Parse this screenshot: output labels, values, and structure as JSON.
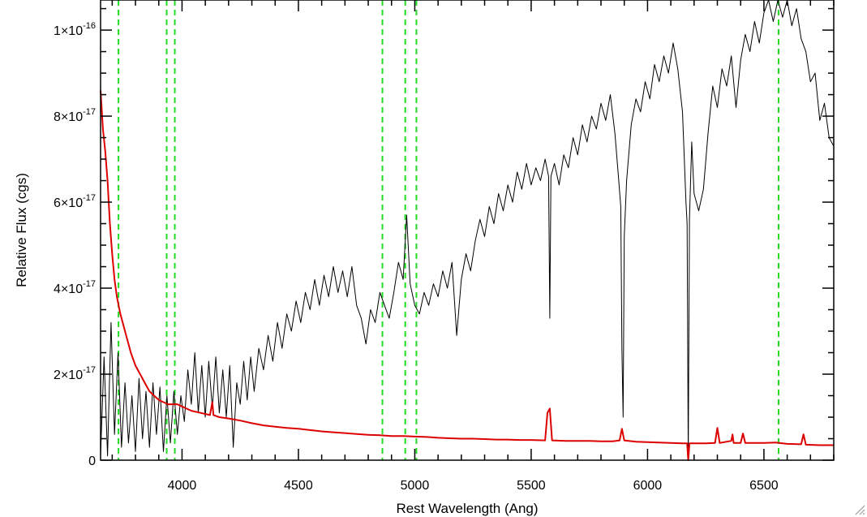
{
  "chart_data": {
    "type": "line",
    "title": "",
    "xlabel": "Rest Wavelength (Ang)",
    "ylabel": "Relative Flux (cgs)",
    "xlim": [
      3650,
      6800
    ],
    "ylim": [
      0,
      1.07e-16
    ],
    "x_ticks": [
      {
        "value": 4000,
        "label": "4000"
      },
      {
        "value": 4500,
        "label": "4500"
      },
      {
        "value": 5000,
        "label": "5000"
      },
      {
        "value": 5500,
        "label": "5500"
      },
      {
        "value": 6000,
        "label": "6000"
      },
      {
        "value": 6500,
        "label": "6500"
      }
    ],
    "y_ticks": [
      {
        "value": 0,
        "label": "0",
        "mant": "",
        "exp": ""
      },
      {
        "value": 2e-17,
        "label": "2×10⁻¹⁷",
        "mant": "2×10",
        "exp": "-17"
      },
      {
        "value": 4e-17,
        "label": "4×10⁻¹⁷",
        "mant": "4×10",
        "exp": "-17"
      },
      {
        "value": 6e-17,
        "label": "6×10⁻¹⁷",
        "mant": "6×10",
        "exp": "-17"
      },
      {
        "value": 8e-17,
        "label": "8×10⁻¹⁷",
        "mant": "8×10",
        "exp": "-17"
      },
      {
        "value": 1e-16,
        "label": "1×10⁻¹⁶",
        "mant": "1×10",
        "exp": "-16"
      }
    ],
    "reference_lines": [
      3727,
      3934,
      3969,
      4861,
      4959,
      5007,
      6563
    ],
    "series": [
      {
        "color": "#000000",
        "points": [
          [
            3650,
            1e-18
          ],
          [
            3665,
            2.4e-17
          ],
          [
            3680,
            1e-18
          ],
          [
            3695,
            3.2e-17
          ],
          [
            3710,
            6e-18
          ],
          [
            3725,
            2.5e-17
          ],
          [
            3740,
            3e-18
          ],
          [
            3755,
            1.8e-17
          ],
          [
            3770,
            4e-18
          ],
          [
            3785,
            1.5e-17
          ],
          [
            3800,
            2e-18
          ],
          [
            3815,
            1.9e-17
          ],
          [
            3830,
            5e-18
          ],
          [
            3845,
            1.6e-17
          ],
          [
            3860,
            3e-18
          ],
          [
            3875,
            1.8e-17
          ],
          [
            3890,
            6e-18
          ],
          [
            3905,
            1.7e-17
          ],
          [
            3920,
            2e-18
          ],
          [
            3935,
            1.5e-17
          ],
          [
            3950,
            4e-18
          ],
          [
            3965,
            1.6e-17
          ],
          [
            3980,
            6e-18
          ],
          [
            3995,
            1.5e-17
          ],
          [
            4010,
            9e-18
          ],
          [
            4025,
            2.1e-17
          ],
          [
            4040,
            1.3e-17
          ],
          [
            4055,
            2.5e-17
          ],
          [
            4070,
            1.1e-17
          ],
          [
            4085,
            2.2e-17
          ],
          [
            4100,
            1e-17
          ],
          [
            4115,
            2.3e-17
          ],
          [
            4130,
            1.2e-17
          ],
          [
            4145,
            2.4e-17
          ],
          [
            4160,
            1.1e-17
          ],
          [
            4175,
            2.1e-17
          ],
          [
            4190,
            1e-17
          ],
          [
            4205,
            2.2e-17
          ],
          [
            4220,
            3e-18
          ],
          [
            4235,
            1.8e-17
          ],
          [
            4250,
            1.3e-17
          ],
          [
            4265,
            2.3e-17
          ],
          [
            4280,
            1.4e-17
          ],
          [
            4295,
            2.4e-17
          ],
          [
            4310,
            1.6e-17
          ],
          [
            4330,
            2.6e-17
          ],
          [
            4350,
            2.1e-17
          ],
          [
            4370,
            2.9e-17
          ],
          [
            4390,
            2.3e-17
          ],
          [
            4410,
            3.2e-17
          ],
          [
            4430,
            2.6e-17
          ],
          [
            4450,
            3.4e-17
          ],
          [
            4470,
            3e-17
          ],
          [
            4490,
            3.7e-17
          ],
          [
            4510,
            3.2e-17
          ],
          [
            4530,
            3.9e-17
          ],
          [
            4550,
            3.5e-17
          ],
          [
            4570,
            4.2e-17
          ],
          [
            4590,
            3.6e-17
          ],
          [
            4610,
            4.3e-17
          ],
          [
            4630,
            3.8e-17
          ],
          [
            4650,
            4.5e-17
          ],
          [
            4670,
            3.9e-17
          ],
          [
            4690,
            4.4e-17
          ],
          [
            4710,
            3.8e-17
          ],
          [
            4730,
            4.5e-17
          ],
          [
            4750,
            3.6e-17
          ],
          [
            4770,
            3.3e-17
          ],
          [
            4790,
            2.7e-17
          ],
          [
            4810,
            3.5e-17
          ],
          [
            4830,
            3.2e-17
          ],
          [
            4850,
            3.9e-17
          ],
          [
            4870,
            3.6e-17
          ],
          [
            4890,
            3.3e-17
          ],
          [
            4910,
            3.9e-17
          ],
          [
            4930,
            4.6e-17
          ],
          [
            4950,
            4.2e-17
          ],
          [
            4965,
            5.7e-17
          ],
          [
            4980,
            4.1e-17
          ],
          [
            5000,
            3.6e-17
          ],
          [
            5020,
            3.4e-17
          ],
          [
            5040,
            3.9e-17
          ],
          [
            5060,
            3.6e-17
          ],
          [
            5080,
            4.1e-17
          ],
          [
            5100,
            3.8e-17
          ],
          [
            5120,
            4.4e-17
          ],
          [
            5140,
            4e-17
          ],
          [
            5160,
            4.6e-17
          ],
          [
            5180,
            2.9e-17
          ],
          [
            5200,
            4.2e-17
          ],
          [
            5220,
            4.8e-17
          ],
          [
            5240,
            4.4e-17
          ],
          [
            5260,
            5.1e-17
          ],
          [
            5280,
            5.6e-17
          ],
          [
            5300,
            5.2e-17
          ],
          [
            5320,
            5.9e-17
          ],
          [
            5340,
            5.5e-17
          ],
          [
            5360,
            6.2e-17
          ],
          [
            5380,
            5.8e-17
          ],
          [
            5400,
            6.4e-17
          ],
          [
            5420,
            6e-17
          ],
          [
            5440,
            6.7e-17
          ],
          [
            5460,
            6.3e-17
          ],
          [
            5480,
            6.9e-17
          ],
          [
            5500,
            6.4e-17
          ],
          [
            5520,
            6.8e-17
          ],
          [
            5540,
            6.5e-17
          ],
          [
            5560,
            7e-17
          ],
          [
            5575,
            6.6e-17
          ],
          [
            5580,
            3.3e-17
          ],
          [
            5585,
            6.6e-17
          ],
          [
            5600,
            6.9e-17
          ],
          [
            5620,
            6.4e-17
          ],
          [
            5640,
            7.1e-17
          ],
          [
            5660,
            6.8e-17
          ],
          [
            5680,
            7.5e-17
          ],
          [
            5700,
            7.1e-17
          ],
          [
            5720,
            7.8e-17
          ],
          [
            5740,
            7.4e-17
          ],
          [
            5760,
            8e-17
          ],
          [
            5780,
            7.7e-17
          ],
          [
            5800,
            8.3e-17
          ],
          [
            5820,
            7.9e-17
          ],
          [
            5840,
            8.5e-17
          ],
          [
            5860,
            7.6e-17
          ],
          [
            5875,
            6.6e-17
          ],
          [
            5885,
            5.9e-17
          ],
          [
            5890,
            2.6e-17
          ],
          [
            5895,
            1e-17
          ],
          [
            5900,
            5.2e-17
          ],
          [
            5910,
            6.5e-17
          ],
          [
            5930,
            7.8e-17
          ],
          [
            5950,
            8.4e-17
          ],
          [
            5970,
            8.1e-17
          ],
          [
            5990,
            8.8e-17
          ],
          [
            6010,
            8.4e-17
          ],
          [
            6030,
            9.2e-17
          ],
          [
            6050,
            8.8e-17
          ],
          [
            6070,
            9.4e-17
          ],
          [
            6090,
            9e-17
          ],
          [
            6110,
            9.7e-17
          ],
          [
            6130,
            9.1e-17
          ],
          [
            6150,
            8.1e-17
          ],
          [
            6165,
            6e-17
          ],
          [
            6170,
            5.5e-17
          ],
          [
            6175,
            0.0
          ],
          [
            6180,
            5.6e-17
          ],
          [
            6190,
            7.4e-17
          ],
          [
            6200,
            6.2e-17
          ],
          [
            6220,
            5.8e-17
          ],
          [
            6240,
            6.3e-17
          ],
          [
            6260,
            7.6e-17
          ],
          [
            6280,
            8.7e-17
          ],
          [
            6300,
            8.2e-17
          ],
          [
            6320,
            9.1e-17
          ],
          [
            6340,
            8.7e-17
          ],
          [
            6360,
            9.4e-17
          ],
          [
            6380,
            8.2e-17
          ],
          [
            6400,
            9.3e-17
          ],
          [
            6420,
            9.9e-17
          ],
          [
            6440,
            9.5e-17
          ],
          [
            6460,
            1.02e-16
          ],
          [
            6480,
            9.7e-17
          ],
          [
            6500,
            1.04e-16
          ],
          [
            6520,
            1.07e-16
          ],
          [
            6540,
            1.02e-16
          ],
          [
            6560,
            1.07e-16
          ],
          [
            6580,
            1.03e-16
          ],
          [
            6600,
            1.07e-16
          ],
          [
            6620,
            1.01e-16
          ],
          [
            6640,
            1.05e-16
          ],
          [
            6660,
            9.8e-17
          ],
          [
            6680,
            9.5e-17
          ],
          [
            6700,
            8.8e-17
          ],
          [
            6720,
            9e-17
          ],
          [
            6740,
            7.9e-17
          ],
          [
            6760,
            8.3e-17
          ],
          [
            6780,
            7.5e-17
          ],
          [
            6800,
            7.3e-17
          ]
        ]
      },
      {
        "color": "#dd0000",
        "points": [
          [
            3650,
            8.6e-17
          ],
          [
            3660,
            7.7e-17
          ],
          [
            3670,
            7.2e-17
          ],
          [
            3680,
            6.5e-17
          ],
          [
            3690,
            5.5e-17
          ],
          [
            3700,
            4.8e-17
          ],
          [
            3710,
            4.2e-17
          ],
          [
            3720,
            3.8e-17
          ],
          [
            3735,
            3.4e-17
          ],
          [
            3750,
            3.1e-17
          ],
          [
            3765,
            2.8e-17
          ],
          [
            3780,
            2.5e-17
          ],
          [
            3800,
            2.2e-17
          ],
          [
            3820,
            2e-17
          ],
          [
            3840,
            1.8e-17
          ],
          [
            3860,
            1.6e-17
          ],
          [
            3880,
            1.5e-17
          ],
          [
            3900,
            1.4e-17
          ],
          [
            3920,
            1.35e-17
          ],
          [
            3940,
            1.3e-17
          ],
          [
            3960,
            1.3e-17
          ],
          [
            3980,
            1.3e-17
          ],
          [
            4000,
            1.25e-17
          ],
          [
            4040,
            1.15e-17
          ],
          [
            4080,
            1.1e-17
          ],
          [
            4120,
            1.05e-17
          ],
          [
            4130,
            1.35e-17
          ],
          [
            4135,
            1.05e-17
          ],
          [
            4160,
            1e-17
          ],
          [
            4200,
            9.7e-18
          ],
          [
            4250,
            9.2e-18
          ],
          [
            4300,
            8.6e-18
          ],
          [
            4350,
            8.1e-18
          ],
          [
            4400,
            7.8e-18
          ],
          [
            4450,
            7.5e-18
          ],
          [
            4500,
            7.3e-18
          ],
          [
            4550,
            7e-18
          ],
          [
            4600,
            6.7e-18
          ],
          [
            4650,
            6.5e-18
          ],
          [
            4700,
            6.3e-18
          ],
          [
            4750,
            6.1e-18
          ],
          [
            4800,
            5.9e-18
          ],
          [
            4850,
            5.8e-18
          ],
          [
            4900,
            5.6e-18
          ],
          [
            4950,
            5.6e-18
          ],
          [
            5000,
            5.5e-18
          ],
          [
            5050,
            5.4e-18
          ],
          [
            5100,
            5.2e-18
          ],
          [
            5150,
            5.1e-18
          ],
          [
            5200,
            5e-18
          ],
          [
            5250,
            5e-18
          ],
          [
            5300,
            4.9e-18
          ],
          [
            5350,
            4.8e-18
          ],
          [
            5400,
            4.8e-18
          ],
          [
            5450,
            4.7e-18
          ],
          [
            5500,
            4.7e-18
          ],
          [
            5560,
            4.6e-18
          ],
          [
            5570,
            1.1e-17
          ],
          [
            5580,
            1.2e-17
          ],
          [
            5590,
            4.6e-18
          ],
          [
            5650,
            4.5e-18
          ],
          [
            5700,
            4.5e-18
          ],
          [
            5750,
            4.5e-18
          ],
          [
            5800,
            4.4e-18
          ],
          [
            5850,
            4.4e-18
          ],
          [
            5880,
            4.6e-18
          ],
          [
            5890,
            7.3e-18
          ],
          [
            5900,
            4.6e-18
          ],
          [
            5950,
            4.3e-18
          ],
          [
            6000,
            4.2e-18
          ],
          [
            6050,
            4.1e-18
          ],
          [
            6100,
            4e-18
          ],
          [
            6150,
            3.9e-18
          ],
          [
            6170,
            3.9e-18
          ],
          [
            6175,
            0.0
          ],
          [
            6180,
            3.9e-18
          ],
          [
            6250,
            3.9e-18
          ],
          [
            6290,
            4e-18
          ],
          [
            6300,
            7.5e-18
          ],
          [
            6310,
            4e-18
          ],
          [
            6360,
            4.5e-18
          ],
          [
            6365,
            6e-18
          ],
          [
            6370,
            4e-18
          ],
          [
            6400,
            4e-18
          ],
          [
            6410,
            6.2e-18
          ],
          [
            6420,
            4e-18
          ],
          [
            6500,
            4e-18
          ],
          [
            6550,
            4.1e-18
          ],
          [
            6600,
            3.8e-18
          ],
          [
            6660,
            3.7e-18
          ],
          [
            6670,
            6e-18
          ],
          [
            6680,
            3.6e-18
          ],
          [
            6740,
            3.5e-18
          ],
          [
            6800,
            3.5e-18
          ]
        ]
      }
    ],
    "grid": false,
    "legend": "none"
  }
}
